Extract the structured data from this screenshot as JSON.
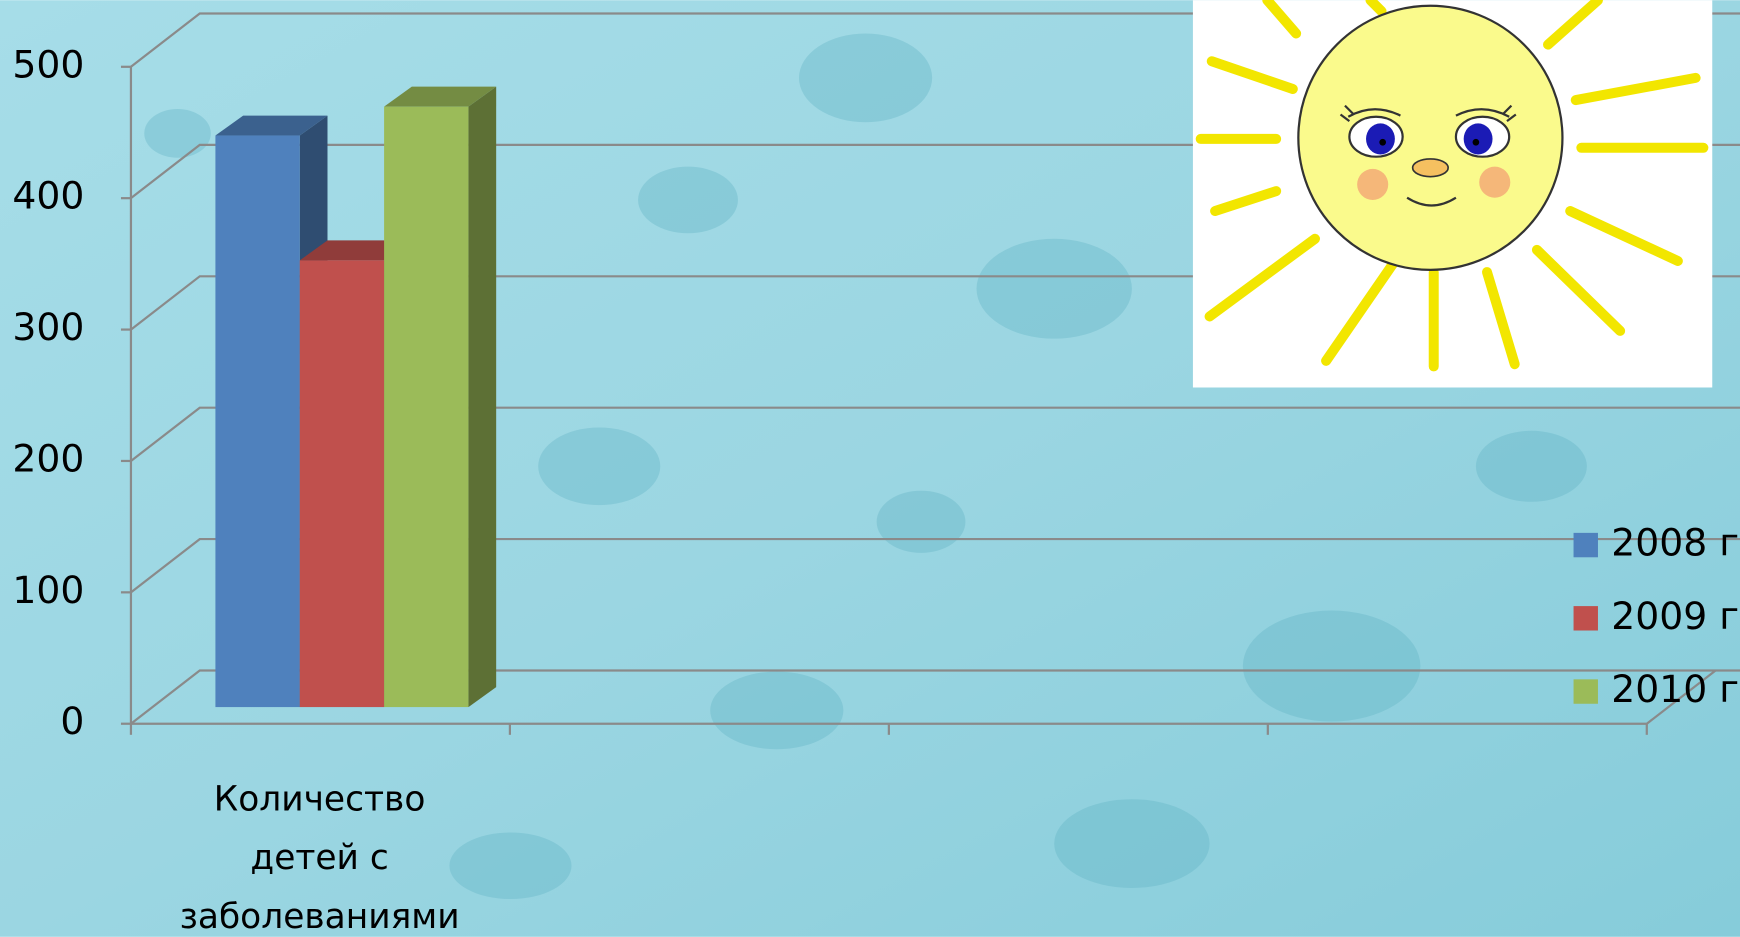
{
  "chart_data": {
    "type": "bar",
    "categories": [
      "Количество детей с заболеваниями",
      null,
      null,
      null
    ],
    "series": [
      {
        "name": "2008 г",
        "color": "#4f81bd",
        "values": [
          435,
          null,
          null,
          null
        ]
      },
      {
        "name": "2009 г",
        "color": "#c0504d",
        "values": [
          340,
          null,
          null,
          null
        ]
      },
      {
        "name": "2010 г",
        "color": "#9bbb59",
        "values": [
          457,
          null,
          null,
          null
        ]
      }
    ],
    "ylim": [
      0,
      500
    ],
    "yticks": [
      0,
      100,
      200,
      300,
      400,
      500
    ],
    "grid": true,
    "legend": "right"
  }
}
